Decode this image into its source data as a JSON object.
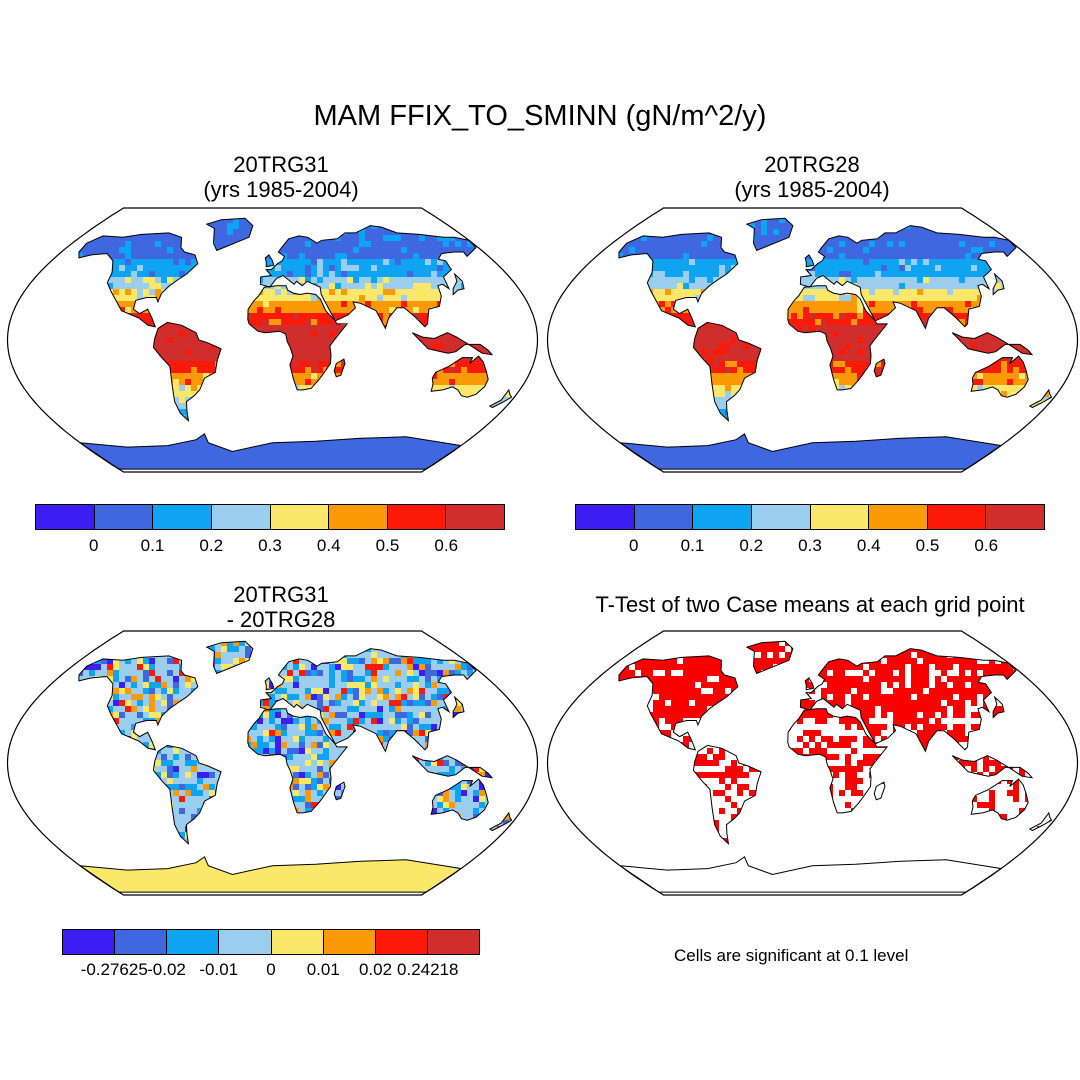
{
  "main_title": "MAM FFIX_TO_SMINN (gN/m^2/y)",
  "panels": [
    {
      "title_line1": "20TRG31",
      "title_line2": "(yrs 1985-2004)",
      "type": "field",
      "palette": "full"
    },
    {
      "title_line1": "20TRG28",
      "title_line2": "(yrs 1985-2004)",
      "type": "field",
      "palette": "full"
    },
    {
      "title_line1": "20TRG31",
      "title_line2": "- 20TRG28",
      "type": "difference",
      "palette": "diff"
    },
    {
      "title_line1": "T-Test of two Case means at each grid point",
      "title_line2": "",
      "type": "significance"
    }
  ],
  "colorbars": {
    "field": {
      "colors": [
        "#3d1ef2",
        "#3f67e0",
        "#0fa4f2",
        "#9acdee",
        "#fbe86a",
        "#fb9a06",
        "#fb1908",
        "#d02d2d"
      ],
      "labels": [
        "0",
        "0.1",
        "0.2",
        "0.3",
        "0.4",
        "0.5",
        "0.6"
      ]
    },
    "diff": {
      "colors": [
        "#3d1ef2",
        "#3f67e0",
        "#0fa4f2",
        "#9acdee",
        "#fbe86a",
        "#fb9a06",
        "#fb1908",
        "#d02d2d"
      ],
      "labels": [
        "-0.27625",
        "-0.02",
        "-0.01",
        "0",
        "0.01",
        "0.02",
        "0.24218"
      ]
    }
  },
  "significance_color": "#fb0000",
  "significance_note": "Cells are significant at 0.1 level"
}
